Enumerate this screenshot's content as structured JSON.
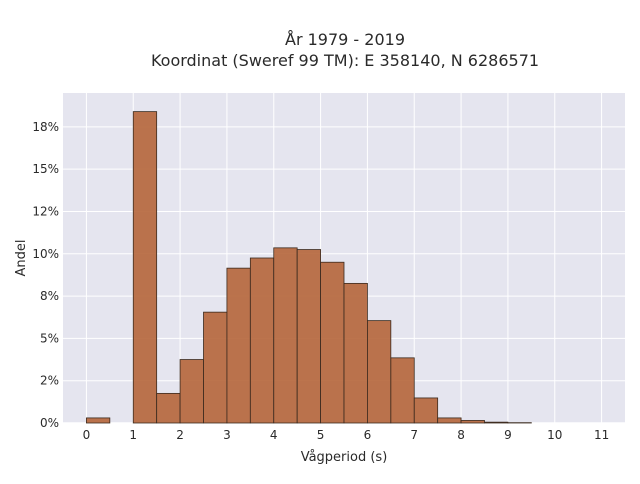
{
  "chart_data": {
    "type": "bar",
    "title_line1": "År 1979 - 2019",
    "title_line2": "Koordinat (Sweref 99 TM): E 358140, N 6286571",
    "xlabel": "Vågperiod (s)",
    "ylabel": "Andel",
    "xlim": [
      -0.5,
      11.5
    ],
    "ylim": [
      0,
      0.195
    ],
    "x_ticks": [
      0,
      1,
      2,
      3,
      4,
      5,
      6,
      7,
      8,
      9,
      10,
      11
    ],
    "y_ticks": [
      {
        "value": 0,
        "label": "0%"
      },
      {
        "value": 0.025,
        "label": "2%"
      },
      {
        "value": 0.05,
        "label": "5%"
      },
      {
        "value": 0.075,
        "label": "8%"
      },
      {
        "value": 0.1,
        "label": "10%"
      },
      {
        "value": 0.125,
        "label": "12%"
      },
      {
        "value": 0.15,
        "label": "15%"
      },
      {
        "value": 0.175,
        "label": "18%"
      }
    ],
    "bin_width": 0.5,
    "bins": [
      {
        "start": 0.0,
        "value": 0.003
      },
      {
        "start": 0.5,
        "value": 0.0
      },
      {
        "start": 1.0,
        "value": 0.184
      },
      {
        "start": 1.5,
        "value": 0.0175
      },
      {
        "start": 2.0,
        "value": 0.0375
      },
      {
        "start": 2.5,
        "value": 0.0655
      },
      {
        "start": 3.0,
        "value": 0.0915
      },
      {
        "start": 3.5,
        "value": 0.0975
      },
      {
        "start": 4.0,
        "value": 0.1035
      },
      {
        "start": 4.5,
        "value": 0.1025
      },
      {
        "start": 5.0,
        "value": 0.095
      },
      {
        "start": 5.5,
        "value": 0.0825
      },
      {
        "start": 6.0,
        "value": 0.0605
      },
      {
        "start": 6.5,
        "value": 0.0385
      },
      {
        "start": 7.0,
        "value": 0.0148
      },
      {
        "start": 7.5,
        "value": 0.003
      },
      {
        "start": 8.0,
        "value": 0.0015
      },
      {
        "start": 8.5,
        "value": 0.0005
      },
      {
        "start": 9.0,
        "value": 0.0002
      }
    ],
    "grid": true,
    "colors": {
      "bar_fill": "#b5653a",
      "bar_stroke": "#3a2a1e",
      "plot_bg": "#e5e5ef",
      "grid": "#ffffff"
    }
  }
}
